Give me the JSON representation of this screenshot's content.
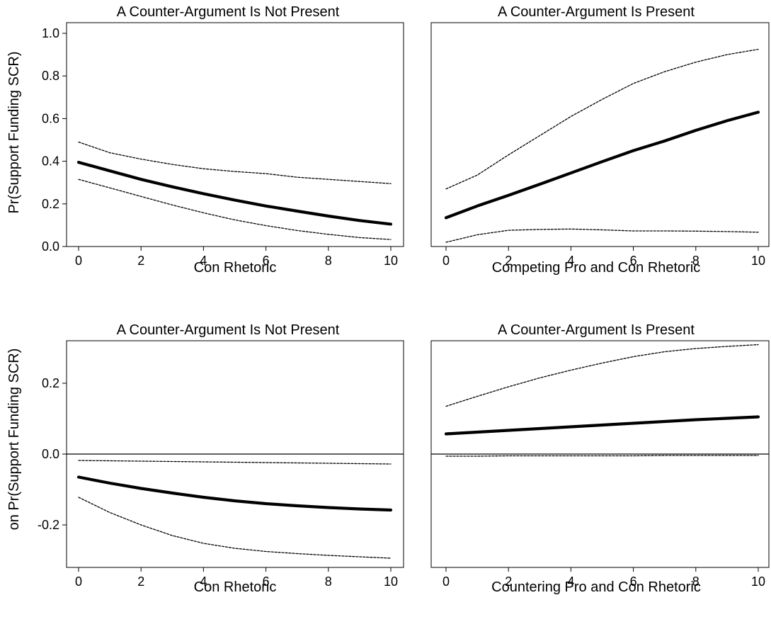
{
  "chart_data": [
    {
      "type": "line",
      "title": "A Counter-Argument Is Not Present",
      "xlabel": "Con Rhetoric",
      "ylabel": "Pr(Support Funding SCR)",
      "xlim": [
        0,
        10
      ],
      "ylim": [
        0,
        1.05
      ],
      "xticks": [
        "0",
        "2",
        "4",
        "6",
        "8",
        "10"
      ],
      "yticks": [
        "0.0",
        "0.2",
        "0.4",
        "0.6",
        "0.8",
        "1.0"
      ],
      "reference_line": null,
      "series": [
        {
          "style": "estimate",
          "x": [
            0,
            1,
            2,
            3,
            4,
            5,
            6,
            7,
            8,
            9,
            10
          ],
          "y": [
            0.395,
            0.355,
            0.315,
            0.28,
            0.248,
            0.218,
            0.19,
            0.166,
            0.143,
            0.122,
            0.105
          ]
        },
        {
          "style": "upper",
          "x": [
            0,
            1,
            2,
            3,
            4,
            5,
            6,
            7,
            8,
            9,
            10
          ],
          "y": [
            0.49,
            0.44,
            0.41,
            0.385,
            0.365,
            0.352,
            0.342,
            0.325,
            0.315,
            0.305,
            0.295
          ]
        },
        {
          "style": "lower",
          "x": [
            0,
            1,
            2,
            3,
            4,
            5,
            6,
            7,
            8,
            9,
            10
          ],
          "y": [
            0.315,
            0.275,
            0.235,
            0.195,
            0.158,
            0.125,
            0.098,
            0.075,
            0.057,
            0.042,
            0.033
          ]
        }
      ]
    },
    {
      "type": "line",
      "title": "A Counter-Argument Is Present",
      "xlabel": "Competing Pro and Con Rhetoric",
      "ylabel": "",
      "xlim": [
        0,
        10
      ],
      "ylim": [
        0,
        1.05
      ],
      "xticks": [
        "0",
        "2",
        "4",
        "6",
        "8",
        "10"
      ],
      "yticks": [],
      "reference_line": null,
      "series": [
        {
          "style": "estimate",
          "x": [
            0,
            1,
            2,
            3,
            4,
            5,
            6,
            7,
            8,
            9,
            10
          ],
          "y": [
            0.135,
            0.19,
            0.24,
            0.292,
            0.345,
            0.398,
            0.45,
            0.495,
            0.545,
            0.59,
            0.63
          ]
        },
        {
          "style": "upper",
          "x": [
            0,
            1,
            2,
            3,
            4,
            5,
            6,
            7,
            8,
            9,
            10
          ],
          "y": [
            0.27,
            0.335,
            0.43,
            0.52,
            0.61,
            0.69,
            0.765,
            0.82,
            0.865,
            0.9,
            0.925
          ]
        },
        {
          "style": "lower",
          "x": [
            0,
            1,
            2,
            3,
            4,
            5,
            6,
            7,
            8,
            9,
            10
          ],
          "y": [
            0.02,
            0.055,
            0.076,
            0.08,
            0.082,
            0.078,
            0.073,
            0.073,
            0.072,
            0.07,
            0.067
          ]
        }
      ]
    },
    {
      "type": "line",
      "title": "A Counter-Argument Is Not Present",
      "xlabel": "Con Rhetoric",
      "ylabel": "on Pr(Support Funding SCR)",
      "xlim": [
        0,
        10
      ],
      "ylim": [
        -0.32,
        0.32
      ],
      "xticks": [
        "0",
        "2",
        "4",
        "6",
        "8",
        "10"
      ],
      "yticks": [
        "-0.2",
        "0.0",
        "0.2"
      ],
      "reference_line": 0,
      "series": [
        {
          "style": "estimate",
          "x": [
            0,
            1,
            2,
            3,
            4,
            5,
            6,
            7,
            8,
            9,
            10
          ],
          "y": [
            -0.065,
            -0.082,
            -0.097,
            -0.11,
            -0.122,
            -0.132,
            -0.14,
            -0.146,
            -0.151,
            -0.155,
            -0.158
          ]
        },
        {
          "style": "upper",
          "x": [
            0,
            1,
            2,
            3,
            4,
            5,
            6,
            7,
            8,
            9,
            10
          ],
          "y": [
            -0.018,
            -0.019,
            -0.02,
            -0.021,
            -0.022,
            -0.023,
            -0.024,
            -0.025,
            -0.026,
            -0.027,
            -0.028
          ]
        },
        {
          "style": "lower",
          "x": [
            0,
            1,
            2,
            3,
            4,
            5,
            6,
            7,
            8,
            9,
            10
          ],
          "y": [
            -0.122,
            -0.165,
            -0.2,
            -0.23,
            -0.252,
            -0.266,
            -0.275,
            -0.281,
            -0.286,
            -0.29,
            -0.294
          ]
        }
      ]
    },
    {
      "type": "line",
      "title": "A Counter-Argument Is Present",
      "xlabel": "Countering Pro and Con Rhetoric",
      "ylabel": "",
      "xlim": [
        0,
        10
      ],
      "ylim": [
        -0.32,
        0.32
      ],
      "xticks": [
        "0",
        "2",
        "4",
        "6",
        "8",
        "10"
      ],
      "yticks": [],
      "reference_line": 0,
      "series": [
        {
          "style": "estimate",
          "x": [
            0,
            1,
            2,
            3,
            4,
            5,
            6,
            7,
            8,
            9,
            10
          ],
          "y": [
            0.057,
            0.062,
            0.067,
            0.072,
            0.077,
            0.082,
            0.087,
            0.092,
            0.097,
            0.101,
            0.105
          ]
        },
        {
          "style": "upper",
          "x": [
            0,
            1,
            2,
            3,
            4,
            5,
            6,
            7,
            8,
            9,
            10
          ],
          "y": [
            0.135,
            0.163,
            0.19,
            0.215,
            0.237,
            0.257,
            0.275,
            0.289,
            0.298,
            0.304,
            0.309
          ]
        },
        {
          "style": "lower",
          "x": [
            0,
            1,
            2,
            3,
            4,
            5,
            6,
            7,
            8,
            9,
            10
          ],
          "y": [
            -0.006,
            -0.006,
            -0.005,
            -0.005,
            -0.005,
            -0.005,
            -0.005,
            -0.004,
            -0.004,
            -0.004,
            -0.004
          ]
        }
      ]
    }
  ]
}
